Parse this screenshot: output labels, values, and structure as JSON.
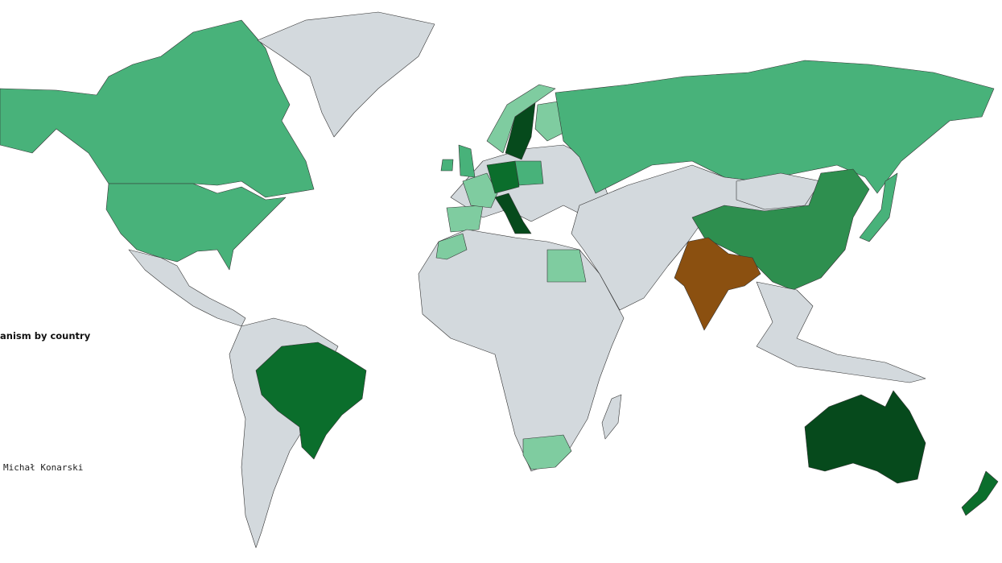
{
  "map": {
    "title": "anism by country",
    "credit": "Michał Konarski",
    "colors": {
      "no_data": "#d3d9dd",
      "level_1": "#7fcca0",
      "level_2": "#48b27a",
      "level_3": "#2e8f4f",
      "level_4": "#0b6e2c",
      "level_5": "#064a1c",
      "highlight": "#8b5010"
    },
    "regions": [
      {
        "name": "Canada",
        "level": "level_2"
      },
      {
        "name": "United States",
        "level": "level_2"
      },
      {
        "name": "Greenland",
        "level": "no_data"
      },
      {
        "name": "Mexico and Central America",
        "level": "no_data"
      },
      {
        "name": "South America",
        "level": "no_data"
      },
      {
        "name": "Brazil",
        "level": "level_4"
      },
      {
        "name": "Africa",
        "level": "no_data"
      },
      {
        "name": "Egypt",
        "level": "level_1"
      },
      {
        "name": "Morocco",
        "level": "level_1"
      },
      {
        "name": "South Africa",
        "level": "level_1"
      },
      {
        "name": "Madagascar",
        "level": "no_data"
      },
      {
        "name": "Europe",
        "level": "no_data"
      },
      {
        "name": "United Kingdom",
        "level": "level_2"
      },
      {
        "name": "Ireland",
        "level": "level_2"
      },
      {
        "name": "Iberia",
        "level": "level_1"
      },
      {
        "name": "France",
        "level": "level_1"
      },
      {
        "name": "Germany",
        "level": "level_4"
      },
      {
        "name": "Italy",
        "level": "level_5"
      },
      {
        "name": "Poland",
        "level": "level_2"
      },
      {
        "name": "Sweden",
        "level": "level_5"
      },
      {
        "name": "Norway",
        "level": "level_1"
      },
      {
        "name": "Finland",
        "level": "level_1"
      },
      {
        "name": "Russia",
        "level": "level_2"
      },
      {
        "name": "Middle East and Central Asia",
        "level": "no_data"
      },
      {
        "name": "Mongolia",
        "level": "no_data"
      },
      {
        "name": "China",
        "level": "level_3"
      },
      {
        "name": "India",
        "level": "highlight"
      },
      {
        "name": "Japan",
        "level": "level_2"
      },
      {
        "name": "Southeast Asia",
        "level": "no_data"
      },
      {
        "name": "Australia",
        "level": "level_5"
      },
      {
        "name": "New Zealand",
        "level": "level_4"
      }
    ]
  }
}
